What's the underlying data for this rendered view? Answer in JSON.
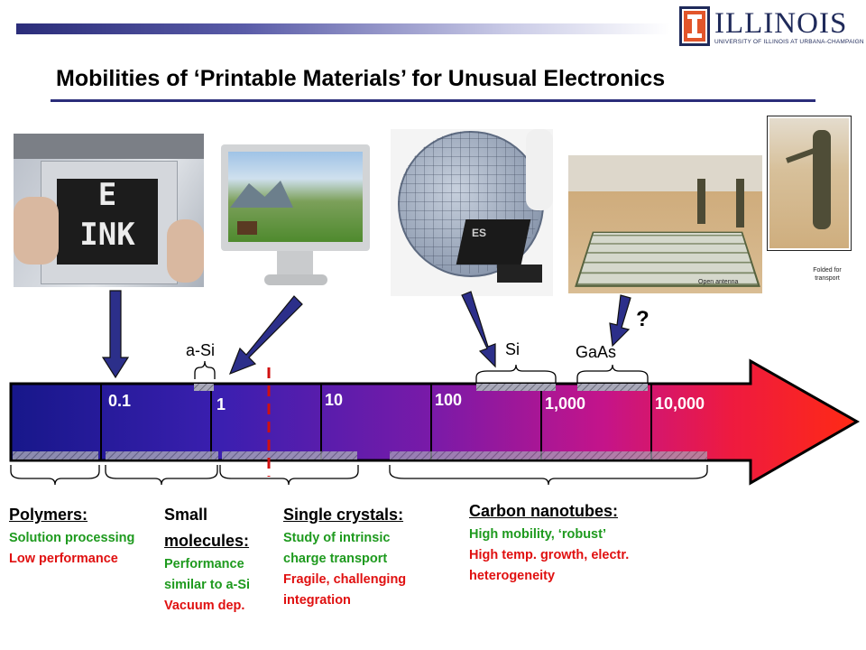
{
  "header": {
    "logo_text": "ILLINOIS",
    "logo_subtext": "UNIVERSITY OF ILLINOIS AT URBANA-CHAMPAIGN",
    "title": "Mobilities of ‘Printable Materials’ for Unusual Electronics"
  },
  "photos": {
    "eink_letters_1": "E",
    "eink_letters_2": "INK",
    "chip_text": "ES",
    "antenna_label": "Open antenna",
    "folded_label": "Folded for transport"
  },
  "scale": {
    "ticks": [
      "0.1",
      "1",
      "10",
      "100",
      "1,000",
      "10,000"
    ],
    "range_labels": {
      "a_si": "a-Si",
      "si": "Si",
      "gaas": "GaAs",
      "question": "?"
    }
  },
  "categories": [
    {
      "head": "Polymers:",
      "lines": [
        {
          "text": "Solution processing",
          "tone": "g"
        },
        {
          "text": "Low performance",
          "tone": "r"
        }
      ]
    },
    {
      "head1": "Small",
      "head2": "molecules:",
      "lines": [
        {
          "text": "Performance",
          "tone": "g"
        },
        {
          "text": "similar to a-Si",
          "tone": "g"
        },
        {
          "text": "Vacuum dep.",
          "tone": "r"
        }
      ]
    },
    {
      "head": "Single crystals:",
      "lines": [
        {
          "text": "Study of intrinsic",
          "tone": "g"
        },
        {
          "text": "charge transport",
          "tone": "g"
        },
        {
          "text": "Fragile, challenging",
          "tone": "r"
        },
        {
          "text": "integration",
          "tone": "r"
        }
      ]
    },
    {
      "head": "Carbon nanotubes:",
      "lines": [
        {
          "text": "High mobility, ‘robust’",
          "tone": "g"
        },
        {
          "text": "High temp. growth, electr.",
          "tone": "r"
        },
        {
          "text": "heterogeneity",
          "tone": "r"
        }
      ]
    }
  ],
  "colors": {
    "good": "#1e9a1e",
    "bad": "#e01010",
    "arrow_start": "#1a1a8c",
    "arrow_end": "#ff1a1a",
    "accent": "#2b2d7a"
  }
}
